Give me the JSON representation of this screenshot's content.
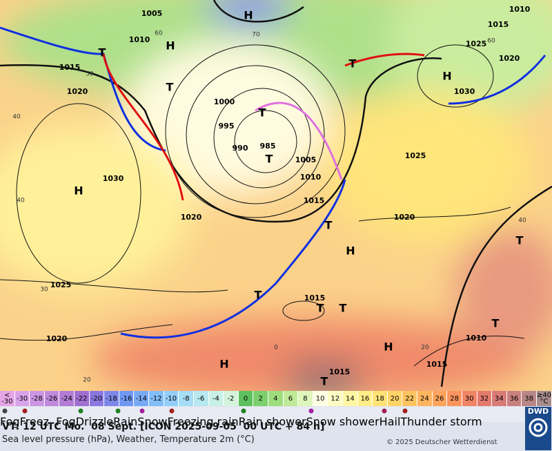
{
  "map": {
    "isobar_labels": [
      "1005",
      "1010",
      "1015",
      "1020",
      "1000",
      "995",
      "990",
      "985",
      "1005",
      "1010",
      "1015",
      "1020",
      "1030",
      "1025",
      "1020",
      "1020",
      "1025",
      "1010",
      "1015",
      "1025",
      "1020",
      "1030",
      "1015",
      "1015",
      "1010",
      "1015"
    ],
    "centers": [
      "H",
      "H",
      "T",
      "T",
      "T",
      "T",
      "H",
      "T",
      "H",
      "T",
      "H",
      "T",
      "T",
      "T",
      "H",
      "H",
      "T",
      "T",
      "T"
    ],
    "grid_labels": [
      "60",
      "50",
      "40",
      "40",
      "30",
      "20",
      "0",
      "20",
      "40",
      "60",
      "70"
    ]
  },
  "color_scale": {
    "unit": "°C",
    "below_label": "<",
    "below_value": -30,
    "above_label": "≥40",
    "values": [
      -30,
      -28,
      -26,
      -24,
      -22,
      -20,
      -18,
      -16,
      -14,
      -12,
      -10,
      -8,
      -6,
      -4,
      -2,
      0,
      2,
      4,
      6,
      8,
      10,
      12,
      14,
      16,
      18,
      20,
      22,
      24,
      26,
      28,
      30,
      32,
      34,
      36,
      38
    ],
    "below_color": "#e6a6e6",
    "colors": [
      "#d9a3ea",
      "#cc96e3",
      "#bf89dc",
      "#b27cd5",
      "#a06fd0",
      "#8a78e0",
      "#7d88ea",
      "#7098f2",
      "#78aaf4",
      "#82bdf8",
      "#92cef8",
      "#a6ddf6",
      "#b8e8f0",
      "#c8f0e6",
      "#d4f4dc",
      "#5cc15c",
      "#7ccf6c",
      "#9edd7e",
      "#bfea98",
      "#def6bc",
      "#ffffe4",
      "#fffcc4",
      "#fff6a4",
      "#ffee88",
      "#ffe276",
      "#ffd466",
      "#ffc462",
      "#ffb45e",
      "#ffa45c",
      "#fc945e",
      "#f08464",
      "#e47a6c",
      "#d87a76",
      "#c8807e",
      "#b88686"
    ],
    "above_color": "#a88c8c"
  },
  "weather_legend": [
    "Fog",
    "Freez. Fog",
    "Drizzle",
    "Rain",
    "Snow",
    "Freezing rain",
    "Rain shower",
    "Snow shower",
    "Hail",
    "Thunder storm"
  ],
  "footer": {
    "valid_time": "VT: 12 UTC Mo.  08 Sept. [ICON 2025-09-05  00 UTC + 84 h]",
    "description": "Sea level pressure (hPa), Weather, Temperature 2m (°C)",
    "copyright": "© 2025 Deutscher Wetterdienst",
    "logo": "DWD"
  }
}
